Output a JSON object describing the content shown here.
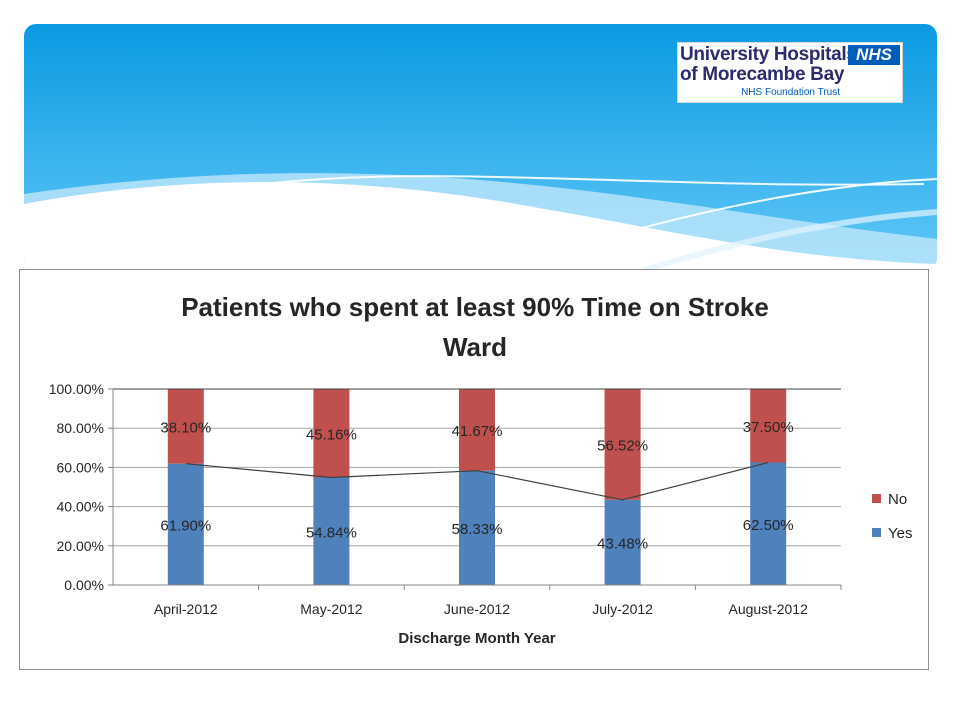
{
  "logo": {
    "line1": "University Hospitals",
    "line2": "of Morecambe Bay",
    "nhs": "NHS",
    "trust": "NHS Foundation Trust"
  },
  "colors": {
    "yes": "#4f81bd",
    "no": "#c0504d",
    "line": "#404040",
    "banner_top": "#0a9ae2",
    "banner_bottom": "#62c8f7"
  },
  "chart_data": {
    "type": "bar",
    "stacked": true,
    "title_lines": [
      "Patients who spent at least 90% Time on Stroke",
      "Ward"
    ],
    "xlabel": "Discharge Month Year",
    "ylabel": "",
    "categories": [
      "April-2012",
      "May-2012",
      "June-2012",
      "July-2012",
      "August-2012"
    ],
    "series": [
      {
        "name": "Yes",
        "values": [
          61.9,
          54.84,
          58.33,
          43.48,
          62.5
        ],
        "labels": [
          "61.90%",
          "54.84%",
          "58.33%",
          "43.48%",
          "62.50%"
        ]
      },
      {
        "name": "No",
        "values": [
          38.1,
          45.16,
          41.67,
          56.52,
          37.5
        ],
        "labels": [
          "38.10%",
          "45.16%",
          "41.67%",
          "56.52%",
          "37.50%"
        ]
      }
    ],
    "legend_order": [
      "No",
      "Yes"
    ],
    "legend_position": "right",
    "overlay_line": "connects the top of the Yes segments",
    "ylim": [
      0,
      100
    ],
    "yticks": [
      "0.00%",
      "20.00%",
      "40.00%",
      "60.00%",
      "80.00%",
      "100.00%"
    ],
    "grid": true
  }
}
